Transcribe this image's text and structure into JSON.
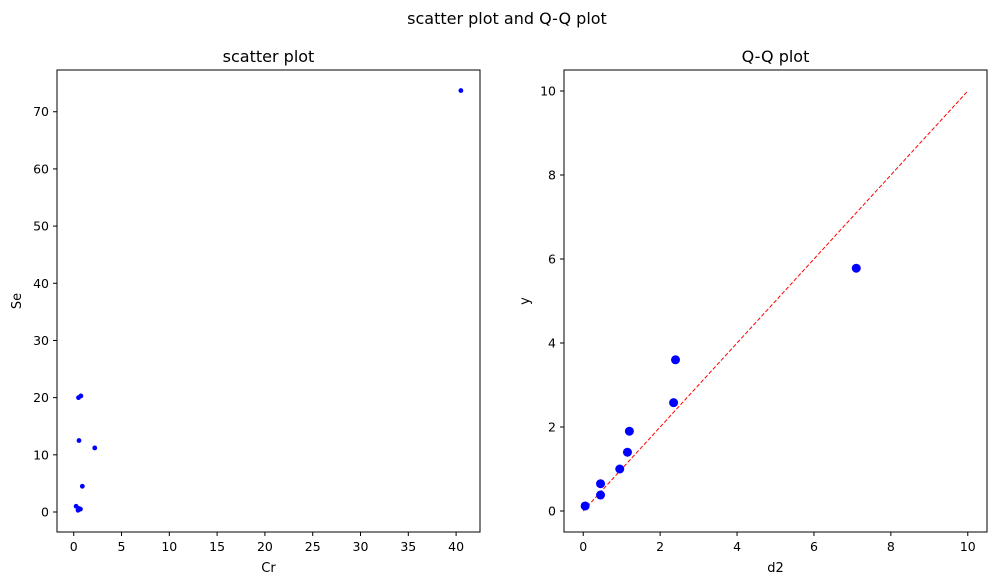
{
  "suptitle": "scatter plot and Q-Q plot",
  "chart_data": [
    {
      "type": "scatter",
      "title": "scatter plot",
      "xlabel": "Cr",
      "ylabel": "Se",
      "xlim": [
        -1.75,
        42.5
      ],
      "ylim": [
        -3.5,
        77.3
      ],
      "xticks": [
        0,
        5,
        10,
        15,
        20,
        25,
        30,
        35,
        40
      ],
      "yticks": [
        0,
        10,
        20,
        30,
        40,
        50,
        60,
        70
      ],
      "marker_color": "#0000ff",
      "marker_size": "small",
      "points": [
        {
          "x": 40.5,
          "y": 73.7
        },
        {
          "x": 0.5,
          "y": 20.0
        },
        {
          "x": 0.75,
          "y": 20.3
        },
        {
          "x": 0.55,
          "y": 12.5
        },
        {
          "x": 2.2,
          "y": 11.2
        },
        {
          "x": 0.9,
          "y": 4.5
        },
        {
          "x": 0.25,
          "y": 1.0
        },
        {
          "x": 0.55,
          "y": 0.6
        },
        {
          "x": 0.7,
          "y": 0.5
        },
        {
          "x": 0.45,
          "y": 0.3
        }
      ]
    },
    {
      "type": "scatter",
      "title": "Q-Q plot",
      "xlabel": "d2",
      "ylabel": "y",
      "xlim": [
        -0.5,
        10.5
      ],
      "ylim": [
        -0.5,
        10.5
      ],
      "xticks": [
        0,
        2,
        4,
        6,
        8,
        10
      ],
      "yticks": [
        0,
        2,
        4,
        6,
        8,
        10
      ],
      "marker_color": "#0000ff",
      "marker_size": "large",
      "points": [
        {
          "x": 0.05,
          "y": 0.12
        },
        {
          "x": 0.45,
          "y": 0.38
        },
        {
          "x": 0.45,
          "y": 0.65
        },
        {
          "x": 0.95,
          "y": 1.0
        },
        {
          "x": 1.15,
          "y": 1.4
        },
        {
          "x": 1.2,
          "y": 1.9
        },
        {
          "x": 2.35,
          "y": 2.58
        },
        {
          "x": 2.4,
          "y": 3.6
        },
        {
          "x": 7.1,
          "y": 5.78
        }
      ],
      "reference_line": {
        "from": [
          0,
          0
        ],
        "to": [
          10,
          10
        ],
        "color": "#ff0000",
        "style": "dashed"
      }
    }
  ]
}
